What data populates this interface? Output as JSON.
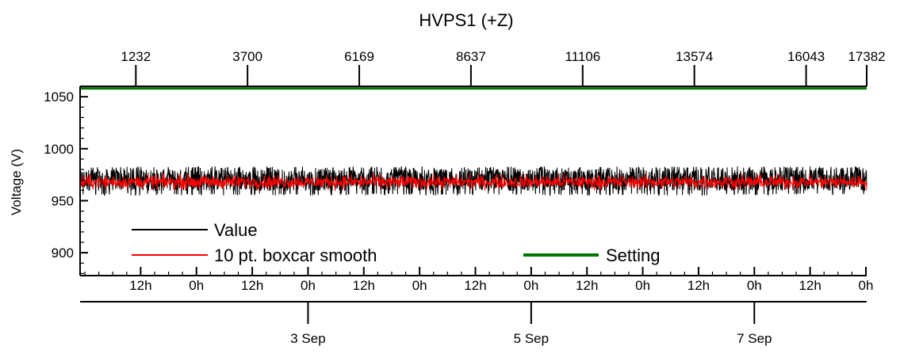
{
  "chart_data": {
    "type": "line",
    "title": "HVPS1 (+Z)",
    "ylabel": "Voltage (V)",
    "xlabel": "",
    "ylim": [
      878,
      1060
    ],
    "yticks": [
      900,
      950,
      1000,
      1050
    ],
    "top_axis": {
      "ticks": [
        1232,
        3700,
        6169,
        8637,
        11106,
        13574,
        16043,
        17382
      ],
      "labels": [
        "1232",
        "3700",
        "6169",
        "8637",
        "11106",
        "13574",
        "16043",
        "17382"
      ]
    },
    "time_axis": {
      "hour_labels": [
        "12h",
        "0h",
        "12h",
        "0h",
        "12h",
        "0h",
        "12h",
        "0h",
        "12h",
        "0h",
        "12h",
        "0h",
        "12h",
        "0h"
      ],
      "date_labels": [
        "3 Sep",
        "5 Sep",
        "7 Sep"
      ]
    },
    "series": [
      {
        "name": "Value",
        "color": "#000000",
        "center": 970,
        "min": 955,
        "max": 983
      },
      {
        "name": "10 pt. boxcar smooth",
        "color": "#ff0000",
        "center": 968,
        "min": 958,
        "max": 979
      },
      {
        "name": "Setting",
        "color": "#007700",
        "value": 1058
      }
    ],
    "legend": {
      "position": "bottom-left",
      "entries": [
        "Value",
        "10 pt. boxcar smooth",
        "Setting"
      ]
    }
  }
}
